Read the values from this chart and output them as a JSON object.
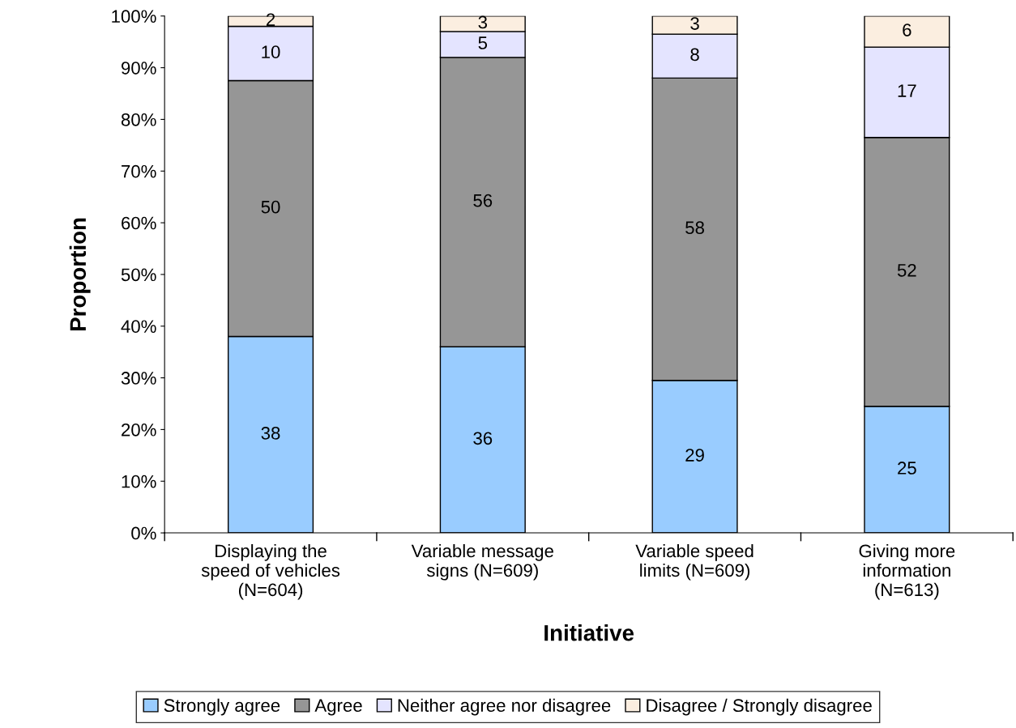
{
  "chart_data": {
    "type": "bar",
    "stacked": true,
    "xlabel": "Initiative",
    "ylabel": "Proportion",
    "categories": [
      "Displaying the\nspeed of vehicles\n(N=604)",
      "Variable message\nsigns (N=609)",
      "Variable speed\nlimits (N=609)",
      "Giving more\ninformation\n(N=613)"
    ],
    "series": [
      {
        "name": "Strongly agree",
        "color": "#99ccff",
        "values": [
          38,
          36,
          29.5,
          24.5
        ],
        "value_labels": [
          "38",
          "36",
          "29",
          "25"
        ]
      },
      {
        "name": "Agree",
        "color": "#969696",
        "values": [
          49.5,
          56,
          58.5,
          52
        ],
        "value_labels": [
          "50",
          "56",
          "58",
          "52"
        ]
      },
      {
        "name": "Neither agree nor disagree",
        "color": "#e4e4ff",
        "values": [
          10.5,
          5,
          8.5,
          17.5
        ],
        "value_labels": [
          "10",
          "5",
          "8",
          "17"
        ]
      },
      {
        "name": "Disagree / Strongly disagree",
        "color": "#fbeee0",
        "values": [
          2,
          3,
          3.5,
          6
        ],
        "value_labels": [
          "2",
          "3",
          "3",
          "6"
        ]
      }
    ],
    "ylim": [
      0,
      100
    ],
    "yticks": [
      {
        "value": 0,
        "label": "0%"
      },
      {
        "value": 10,
        "label": "10%"
      },
      {
        "value": 20,
        "label": "20%"
      },
      {
        "value": 30,
        "label": "30%"
      },
      {
        "value": 40,
        "label": "40%"
      },
      {
        "value": 50,
        "label": "50%"
      },
      {
        "value": 60,
        "label": "60%"
      },
      {
        "value": 70,
        "label": "70%"
      },
      {
        "value": 80,
        "label": "80%"
      },
      {
        "value": 90,
        "label": "90%"
      },
      {
        "value": 100,
        "label": "100%"
      }
    ],
    "grid": false,
    "legend": "bottom"
  }
}
